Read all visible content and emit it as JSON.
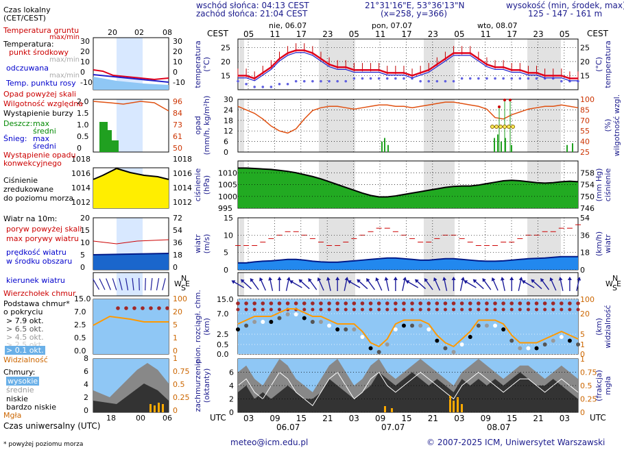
{
  "header": {
    "sunrise": "wschód słońca: 04:13 CEST",
    "sunset": "zachód słońca: 21:04 CEST",
    "coords": "21°31'16\"E, 53°36'13\"N",
    "grid": "(x=258, y=366)",
    "elevation_label": "wysokość (min, środek, max)",
    "elevation_values": "125 - 147 - 161 m"
  },
  "timeaxis": {
    "cest_label": "CEST",
    "utc_label": "UTC",
    "days_top": [
      "nie, 06.07",
      "pon, 07.07",
      "wto, 08.07"
    ],
    "hours_top": [
      "05",
      "11",
      "17",
      "23",
      "05",
      "11",
      "17",
      "23",
      "05",
      "11",
      "17",
      "23",
      "05"
    ],
    "hours_bottom": [
      "03",
      "09",
      "15",
      "21",
      "03",
      "09",
      "15",
      "21",
      "03",
      "09",
      "15",
      "21",
      "03"
    ],
    "days_bottom": [
      "06.07",
      "07.07",
      "08.07"
    ]
  },
  "legend": {
    "time_local": "Czas lokalny",
    "time_local2": "(CET/CEST)",
    "mini_hours_top": [
      "20",
      "02",
      "08"
    ],
    "mini_hours_bottom": [
      "18",
      "00",
      "06"
    ],
    "ground_temp": "Temperatura gruntu",
    "maxmin": "max/min",
    "temperature": "Temperatura:",
    "temp_mid": "punkt środkowy",
    "temp_range": "max/min",
    "feels": "odczuwana",
    "feels_range": "max/min",
    "dew": "Temp. punktu rosy",
    "precip_above": "Opad powyżej skali",
    "humidity": "Wilgotność względna",
    "storm": "Wystąpienie burzy",
    "rain": "Deszcz:",
    "rain_max": "max",
    "rain_mean": "średni",
    "snow": "Śnieg:",
    "snow_max": "max",
    "snow_mean": "średni",
    "precip_occ": "Wystąpienie opadu",
    "precip_occ2": "konwekcyjnego",
    "pressure1": "Ciśnienie",
    "pressure2": "zredukowane",
    "pressure3": "do poziomu morza",
    "wind10": "Wiatr na 10m:",
    "gust_above": "poryw powyżej skali",
    "gust_max": "max porywy wiatru",
    "wind_speed": "prędkość wiatru",
    "wind_area": "w środku obszaru",
    "wind_dir": "kierunek wiatru",
    "cloud_top": "Wierzchołek chmur",
    "cloud_base": "Podstawa chmur*",
    "cloud_base2": "o pokryciu",
    "okt79": "> 7.9 okt.",
    "okt65": "> 6.5 okt.",
    "okt45": "> 4.5 okt.",
    "okt25": "> 2.5 okt.",
    "okt01": "> 0.1 okt.",
    "visibility": "Widzialność",
    "clouds": "Chmury:",
    "high": "wysokie",
    "mid": "średnie",
    "low": "niskie",
    "vlow": "bardzo niskie",
    "fog": "Mgła",
    "utc_time": "Czas uniwersalny (UTC)",
    "footnote": "* powyżej poziomu morza"
  },
  "panels": {
    "temp_label": "temperatura",
    "temp_unit": "(°C)",
    "precip_label": "opad",
    "precip_unit": "(mm/h, kg/m²h)",
    "humidity_label": "wilgotność wzgl.",
    "humidity_unit": "(%)",
    "pressure_label": "ciśnienie",
    "pressure_unit": "(hPa)",
    "pressure_unit2": "(mm Hg)",
    "wind_label": "wiatr",
    "wind_unit": "(m/s)",
    "wind_unit2": "(km/h)",
    "cloudtop_label": "pion. rozciągł. chm.",
    "cloudtop_unit": "(km)",
    "vis_label": "widzialność",
    "vis_unit": "(km)",
    "cloud_label": "zachmurzenie",
    "cloud_unit": "(oktanty)",
    "fog_label": "mgła",
    "fog_unit": "(frakcja)"
  },
  "footer": {
    "email": "meteo@icm.edu.pl",
    "copyright": "© 2007-2025 ICM, Uniwersytet Warszawski"
  },
  "colors": {
    "temp": "#e0001b",
    "dew": "#3030ff",
    "humidity": "#e05010",
    "pressure_fill": "#22aa22",
    "wind_fill": "#2288ee",
    "sky": "#8fc7f5",
    "night": "#e2e2e2"
  },
  "chart_data": [
    {
      "type": "line",
      "title": "temperatura",
      "ylabel": "(°C)",
      "ylim": [
        10,
        28
      ],
      "yticks": [
        15,
        20,
        25
      ],
      "series": [
        {
          "name": "punkt środkowy",
          "values": [
            15,
            15,
            14,
            16,
            18,
            21,
            23,
            24,
            24,
            23,
            21,
            19,
            18,
            18,
            17,
            17,
            17,
            17,
            16,
            16,
            16,
            15,
            16,
            17,
            19,
            21,
            23,
            23,
            23,
            21,
            19,
            18,
            18,
            17,
            17,
            16,
            16,
            15,
            15,
            15,
            14,
            14
          ]
        },
        {
          "name": "Temp. punktu rosy",
          "values": [
            13,
            12,
            11,
            11,
            11,
            12,
            12,
            13,
            13,
            13,
            13,
            13,
            13,
            13,
            14,
            14,
            14,
            14,
            14,
            14,
            14,
            14,
            13,
            13,
            13,
            13,
            13,
            14,
            14,
            14,
            14,
            14,
            14,
            14,
            14,
            14,
            14,
            14,
            14,
            13,
            13,
            13
          ]
        }
      ]
    },
    {
      "type": "line",
      "title": "opad / wilgotność wzgl.",
      "ylim_left": [
        0,
        30
      ],
      "yticks_left": [
        0,
        6,
        12,
        18,
        24,
        30
      ],
      "ylim_right": [
        25,
        100
      ],
      "yticks_right": [
        25,
        40,
        55,
        70,
        85,
        100
      ],
      "series": [
        {
          "name": "Wilgotność względna",
          "values": [
            90,
            85,
            80,
            72,
            62,
            55,
            52,
            58,
            72,
            84,
            88,
            90,
            90,
            88,
            86,
            88,
            90,
            92,
            92,
            90,
            90,
            88,
            90,
            92,
            94,
            96,
            96,
            94,
            92,
            90,
            86,
            74,
            72,
            78,
            82,
            86,
            88,
            90,
            90,
            92,
            90,
            88
          ]
        }
      ]
    },
    {
      "type": "area",
      "title": "ciśnienie",
      "ylabel": "(hPa)",
      "ylim": [
        995,
        1015
      ],
      "yticks": [
        995,
        1000,
        1005,
        1010
      ],
      "yticks_right": [
        746,
        750,
        754,
        758
      ],
      "series": [
        {
          "name": "Ciśnienie",
          "values": [
            1012,
            1012,
            1011.8,
            1011.6,
            1011.4,
            1011,
            1010.6,
            1010,
            1009.2,
            1008.4,
            1007.4,
            1006.2,
            1005,
            1003.8,
            1002.6,
            1001.4,
            1000.4,
            999.8,
            999.8,
            1000.2,
            1000.8,
            1001.4,
            1002,
            1002.6,
            1003.2,
            1003.8,
            1004.2,
            1004.4,
            1004.4,
            1004.8,
            1005.4,
            1006,
            1006.6,
            1006.8,
            1006.6,
            1006.2,
            1005.8,
            1005.6,
            1005.8,
            1006.2,
            1006.4,
            1006.2
          ]
        }
      ]
    },
    {
      "type": "line",
      "title": "wiatr",
      "ylabel": "(m/s)",
      "ylim": [
        0,
        15
      ],
      "yticks": [
        0,
        5,
        10,
        15
      ],
      "yticks_right": [
        0,
        18,
        36,
        54
      ],
      "series": [
        {
          "name": "max porywy wiatru",
          "values": [
            7,
            7,
            7,
            8,
            9,
            10,
            11,
            11,
            10,
            9,
            8,
            7,
            7,
            8,
            9,
            10,
            11,
            12,
            12,
            11,
            10,
            9,
            8,
            8,
            9,
            10,
            10,
            9,
            8,
            7,
            7,
            7,
            8,
            8,
            9,
            10,
            10,
            11,
            11,
            12,
            12,
            13
          ]
        },
        {
          "name": "prędkość wiatru",
          "values": [
            2,
            2,
            2.3,
            2.5,
            2.6,
            2.8,
            3,
            3,
            2.8,
            2.5,
            2.3,
            2.2,
            2.2,
            2.4,
            2.6,
            2.8,
            3,
            3.2,
            3.4,
            3.4,
            3.2,
            3,
            2.8,
            2.8,
            3,
            3.2,
            3.2,
            3,
            2.8,
            2.6,
            2.5,
            2.5,
            2.6,
            2.8,
            3,
            3.2,
            3.3,
            3.4,
            3.6,
            3.8,
            3.8,
            3.8
          ]
        }
      ]
    },
    {
      "type": "line",
      "title": "pion. rozciągł. chm. / widzialność",
      "ylim_left": [
        0,
        15
      ],
      "yticks_left": [
        0.0,
        0.5,
        2.5,
        7.0,
        15.0
      ],
      "yticks_right": [
        0,
        1,
        5,
        20,
        100
      ],
      "series": [
        {
          "name": "Widzialność",
          "values": [
            8,
            9,
            10,
            10,
            10,
            11,
            12,
            12,
            11,
            10,
            10,
            9,
            8,
            8,
            8,
            6,
            3,
            2,
            4,
            8,
            9,
            9,
            9,
            8,
            5,
            3,
            2,
            4,
            6,
            9,
            9,
            9,
            8,
            5,
            3,
            3,
            3,
            4,
            5,
            6,
            5,
            4
          ]
        }
      ]
    },
    {
      "type": "area",
      "title": "zachmurzenie / mgła",
      "ylabel": "(oktanty)",
      "ylim": [
        0,
        8
      ],
      "yticks": [
        0,
        2,
        4,
        6
      ],
      "yticks_right": [
        0,
        0.25,
        0.5,
        0.75,
        1
      ],
      "series": [
        {
          "name": "wysokie",
          "values": [
            6,
            7,
            5,
            4,
            6,
            8,
            7,
            5,
            4,
            3,
            5,
            7,
            8,
            6,
            4,
            5,
            7,
            8,
            6,
            5,
            6,
            7,
            8,
            7,
            6,
            5,
            4,
            6,
            7,
            8,
            7,
            6,
            5,
            6,
            7,
            7,
            6,
            5,
            6,
            7,
            6,
            5
          ]
        },
        {
          "name": "niskie",
          "values": [
            3,
            4,
            2,
            3,
            2,
            3,
            4,
            3,
            2,
            2,
            3,
            5,
            4,
            3,
            2,
            3,
            4,
            6,
            5,
            4,
            5,
            6,
            5,
            4,
            5,
            4,
            3,
            5,
            4,
            5,
            4,
            5,
            4,
            5,
            6,
            5,
            4,
            4,
            5,
            4,
            3,
            2
          ]
        }
      ]
    }
  ]
}
